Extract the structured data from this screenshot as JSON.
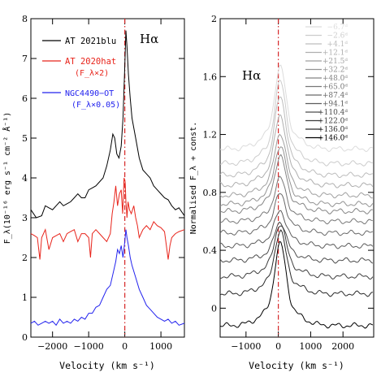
{
  "chart_data": [
    {
      "type": "line",
      "panel": "left",
      "annotation": "Hα",
      "xlabel": "Velocity (km s⁻¹)",
      "ylabel": "F_λ(10⁻¹⁶ erg s⁻¹ cm⁻² Å⁻¹)",
      "xlim": [
        -2600,
        1650
      ],
      "ylim": [
        0,
        8
      ],
      "xticks": [
        -2000,
        -1000,
        0,
        1000
      ],
      "yticks": [
        0,
        1,
        2,
        3,
        4,
        5,
        6,
        7,
        8
      ],
      "vline": {
        "x": 0,
        "color": "#d62728",
        "style": "dash-dot"
      },
      "series": [
        {
          "name": "AT 2021blu",
          "color": "#000000",
          "points": [
            [
              -2600,
              3.2
            ],
            [
              -2450,
              3.0
            ],
            [
              -2300,
              3.05
            ],
            [
              -2200,
              3.3
            ],
            [
              -2100,
              3.25
            ],
            [
              -2000,
              3.2
            ],
            [
              -1900,
              3.3
            ],
            [
              -1800,
              3.4
            ],
            [
              -1700,
              3.3
            ],
            [
              -1600,
              3.35
            ],
            [
              -1500,
              3.4
            ],
            [
              -1400,
              3.5
            ],
            [
              -1300,
              3.6
            ],
            [
              -1200,
              3.5
            ],
            [
              -1100,
              3.5
            ],
            [
              -1000,
              3.7
            ],
            [
              -900,
              3.75
            ],
            [
              -800,
              3.8
            ],
            [
              -700,
              3.9
            ],
            [
              -600,
              4.0
            ],
            [
              -500,
              4.3
            ],
            [
              -400,
              4.7
            ],
            [
              -330,
              5.1
            ],
            [
              -280,
              5.0
            ],
            [
              -220,
              4.6
            ],
            [
              -160,
              4.5
            ],
            [
              -100,
              4.8
            ],
            [
              -50,
              5.5
            ],
            [
              0,
              6.8
            ],
            [
              30,
              7.7
            ],
            [
              60,
              7.3
            ],
            [
              100,
              6.6
            ],
            [
              150,
              6.0
            ],
            [
              200,
              5.5
            ],
            [
              300,
              5.0
            ],
            [
              400,
              4.5
            ],
            [
              500,
              4.2
            ],
            [
              600,
              4.1
            ],
            [
              700,
              4.0
            ],
            [
              800,
              3.8
            ],
            [
              900,
              3.7
            ],
            [
              1000,
              3.6
            ],
            [
              1100,
              3.5
            ],
            [
              1200,
              3.45
            ],
            [
              1300,
              3.3
            ],
            [
              1400,
              3.2
            ],
            [
              1500,
              3.25
            ],
            [
              1650,
              3.05
            ]
          ]
        },
        {
          "name": "AT 2020hat",
          "label_sub": "(F_λ×2)",
          "color": "#e8241b",
          "points": [
            [
              -2600,
              2.6
            ],
            [
              -2500,
              2.55
            ],
            [
              -2420,
              2.5
            ],
            [
              -2350,
              1.95
            ],
            [
              -2300,
              2.5
            ],
            [
              -2200,
              2.7
            ],
            [
              -2100,
              2.2
            ],
            [
              -2000,
              2.5
            ],
            [
              -1900,
              2.55
            ],
            [
              -1800,
              2.6
            ],
            [
              -1700,
              2.4
            ],
            [
              -1600,
              2.6
            ],
            [
              -1500,
              2.65
            ],
            [
              -1400,
              2.7
            ],
            [
              -1300,
              2.4
            ],
            [
              -1200,
              2.6
            ],
            [
              -1100,
              2.6
            ],
            [
              -1000,
              2.5
            ],
            [
              -950,
              2.0
            ],
            [
              -900,
              2.6
            ],
            [
              -800,
              2.7
            ],
            [
              -700,
              2.6
            ],
            [
              -600,
              2.5
            ],
            [
              -500,
              2.4
            ],
            [
              -400,
              2.6
            ],
            [
              -350,
              3.1
            ],
            [
              -300,
              3.4
            ],
            [
              -250,
              3.8
            ],
            [
              -200,
              3.3
            ],
            [
              -150,
              3.6
            ],
            [
              -100,
              3.7
            ],
            [
              -60,
              3.1
            ],
            [
              -20,
              4.0
            ],
            [
              10,
              3.9
            ],
            [
              30,
              3.4
            ],
            [
              60,
              3.0
            ],
            [
              90,
              3.4
            ],
            [
              130,
              3.2
            ],
            [
              180,
              3.1
            ],
            [
              250,
              3.3
            ],
            [
              300,
              3.0
            ],
            [
              350,
              2.8
            ],
            [
              400,
              2.5
            ],
            [
              500,
              2.7
            ],
            [
              600,
              2.8
            ],
            [
              700,
              2.7
            ],
            [
              800,
              2.9
            ],
            [
              900,
              2.8
            ],
            [
              1000,
              2.75
            ],
            [
              1100,
              2.65
            ],
            [
              1150,
              2.3
            ],
            [
              1200,
              1.95
            ],
            [
              1250,
              2.3
            ],
            [
              1300,
              2.5
            ],
            [
              1400,
              2.6
            ],
            [
              1500,
              2.65
            ],
            [
              1650,
              2.7
            ]
          ]
        },
        {
          "name": "NGC4490−OT",
          "label_sub": "(F_λ×0.05)",
          "color": "#2222ee",
          "points": [
            [
              -2600,
              0.35
            ],
            [
              -2500,
              0.4
            ],
            [
              -2400,
              0.3
            ],
            [
              -2300,
              0.35
            ],
            [
              -2200,
              0.4
            ],
            [
              -2100,
              0.35
            ],
            [
              -2000,
              0.4
            ],
            [
              -1900,
              0.3
            ],
            [
              -1800,
              0.45
            ],
            [
              -1700,
              0.35
            ],
            [
              -1600,
              0.4
            ],
            [
              -1500,
              0.35
            ],
            [
              -1400,
              0.45
            ],
            [
              -1300,
              0.4
            ],
            [
              -1200,
              0.5
            ],
            [
              -1100,
              0.45
            ],
            [
              -1000,
              0.6
            ],
            [
              -900,
              0.6
            ],
            [
              -800,
              0.75
            ],
            [
              -700,
              0.8
            ],
            [
              -600,
              1.0
            ],
            [
              -500,
              1.2
            ],
            [
              -400,
              1.3
            ],
            [
              -300,
              1.7
            ],
            [
              -250,
              1.9
            ],
            [
              -200,
              2.2
            ],
            [
              -150,
              2.1
            ],
            [
              -100,
              2.3
            ],
            [
              -50,
              2.0
            ],
            [
              0,
              2.4
            ],
            [
              30,
              2.7
            ],
            [
              60,
              2.5
            ],
            [
              100,
              2.3
            ],
            [
              150,
              2.0
            ],
            [
              200,
              1.8
            ],
            [
              300,
              1.5
            ],
            [
              400,
              1.2
            ],
            [
              500,
              1.0
            ],
            [
              600,
              0.8
            ],
            [
              700,
              0.7
            ],
            [
              800,
              0.6
            ],
            [
              900,
              0.5
            ],
            [
              1000,
              0.45
            ],
            [
              1100,
              0.4
            ],
            [
              1200,
              0.45
            ],
            [
              1300,
              0.35
            ],
            [
              1400,
              0.4
            ],
            [
              1500,
              0.3
            ],
            [
              1650,
              0.35
            ]
          ]
        }
      ]
    },
    {
      "type": "line",
      "panel": "right",
      "annotation": "Hα",
      "xlabel": "Velocity (km s⁻¹)",
      "ylabel": "Normalised F_λ + const.",
      "xlim": [
        -1800,
        2950
      ],
      "ylim": [
        -0.2,
        2.0
      ],
      "xticks": [
        -1000,
        0,
        1000,
        2000
      ],
      "yticks": [
        0,
        0.4,
        0.8,
        1.2,
        1.6,
        2
      ],
      "ytick_labels": [
        "0",
        "0.4",
        "0.8",
        "1.2",
        "1.6",
        "2"
      ],
      "vline": {
        "x": 0,
        "color": "#d62728",
        "style": "dash-dot"
      },
      "epochs": [
        "−6.7ᵈ",
        "−2.6ᵈ",
        "+4.1ᵈ",
        "+12.1ᵈ",
        "+21.5ᵈ",
        "+32.2ᵈ",
        "+48.0ᵈ",
        "+65.0ᵈ",
        "+87.4ᵈ",
        "+94.1ᵈ",
        "+110.4ᵈ",
        "+122.0ᵈ",
        "+136.0ᵈ",
        "+146.0ᵈ"
      ],
      "epoch_colors": [
        "#dcdcdc",
        "#cccccc",
        "#bdbdbd",
        "#afafaf",
        "#a0a0a0",
        "#939393",
        "#858585",
        "#777777",
        "#696969",
        "#5c5c5c",
        "#4d4d4d",
        "#3d3d3d",
        "#2a2a2a",
        "#000000"
      ],
      "series_baselines": [
        1.1,
        1.0,
        0.92,
        0.85,
        0.78,
        0.72,
        0.67,
        0.6,
        0.52,
        0.43,
        0.33,
        0.22,
        0.1,
        -0.12
      ],
      "series_peaks": [
        0.42,
        0.42,
        0.4,
        0.36,
        0.32,
        0.3,
        0.28,
        0.22,
        0.2,
        0.18,
        0.2,
        0.27,
        0.32,
        0.42
      ]
    }
  ],
  "legend": [
    {
      "label": "AT 2021blu",
      "sub": ""
    },
    {
      "label": "AT 2020hat",
      "sub": "(F_λ×2)"
    },
    {
      "label": "NGC4490−OT",
      "sub": "(F_λ×0.05)"
    }
  ]
}
